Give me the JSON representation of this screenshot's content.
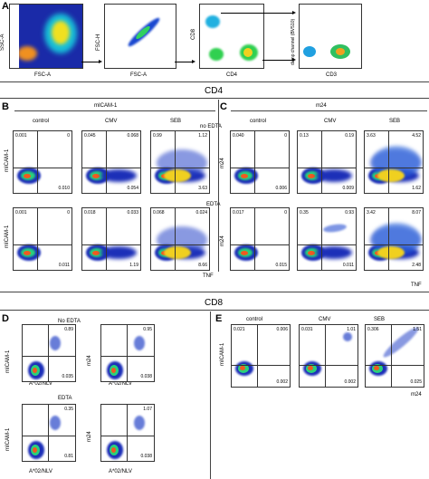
{
  "panels": {
    "a": "A",
    "b": "B",
    "c": "C",
    "d": "D",
    "e": "E"
  },
  "sections": {
    "cd4": "CD4",
    "cd8": "CD8"
  },
  "gating": {
    "ssc": "SSC-A",
    "fsc": "FSC-A",
    "fsch": "FSC-H",
    "fsc2": "FSC-A",
    "cd8": "CD8",
    "cd4": "CD4",
    "dump": "dump channel (BV510)",
    "cd3": "CD3"
  },
  "b": {
    "title": "mICAM-1",
    "cols": [
      "control",
      "CMV",
      "SEB"
    ],
    "row1": "no EDTA",
    "row2": "EDTA",
    "ylabel": "mICAM-1",
    "xlabel": "TNF",
    "q1": [
      [
        "0.001",
        "0",
        "0.010"
      ],
      [
        "0.045",
        "0.068",
        "0.054"
      ],
      [
        "0.99",
        "1.12",
        "3.63"
      ]
    ],
    "q2": [
      [
        "0.001",
        "0",
        "0.011"
      ],
      [
        "0.018",
        "0.033",
        "1.19"
      ],
      [
        "0.068",
        "0.024",
        "8.66"
      ]
    ]
  },
  "c": {
    "title": "m24",
    "cols": [
      "control",
      "CMV",
      "SEB"
    ],
    "ylabel": "m24",
    "xlabel": "TNF",
    "q1": [
      [
        "0.040",
        "0",
        "0.006"
      ],
      [
        "0.13",
        "0.19",
        "0.009"
      ],
      [
        "3.63",
        "4.52",
        "1.62"
      ]
    ],
    "q2": [
      [
        "0.017",
        "0",
        "0.015"
      ],
      [
        "0.35",
        "0.93",
        "0.011"
      ],
      [
        "3.42",
        "8.07",
        "2.48"
      ]
    ]
  },
  "d": {
    "row1": "No EDTA",
    "row2": "EDTA",
    "ylab1": "mICAM-1",
    "ylab2": "m24",
    "xlabel": "A*02/NLV",
    "v": [
      [
        "0.89",
        "0.035"
      ],
      [
        "0.95",
        "0.038"
      ],
      [
        "0.35",
        "0.81"
      ],
      [
        "1.07",
        "0.038"
      ]
    ]
  },
  "e": {
    "cols": [
      "control",
      "CMV",
      "SEB"
    ],
    "ylabel": "mICAM-1",
    "xlabel": "m24",
    "v": [
      [
        "0.021",
        "0.006",
        "0.002"
      ],
      [
        "0.031",
        "1.01",
        "0.002"
      ],
      [
        "0.306",
        "1.51",
        "0.025"
      ]
    ]
  }
}
